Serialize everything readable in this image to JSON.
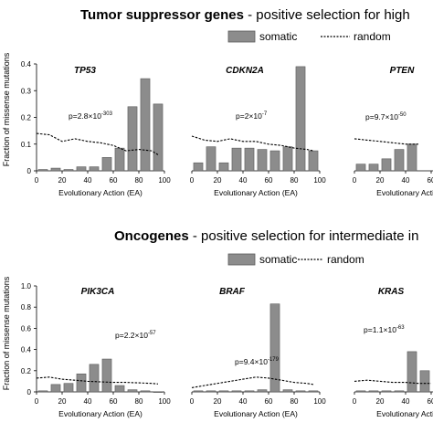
{
  "legend": {
    "somatic_label": "somatic",
    "random_label": "random",
    "somatic_color": "#8c8c8c",
    "bar_edge_color": "#5a5a5a",
    "random_color": "#000000"
  },
  "sections": [
    {
      "heading_bold": "Tumor suppressor genes",
      "heading_rest": " - positive selection for high",
      "ylabel": "Fraction of missense mutations",
      "yticks": [
        "0",
        "0.1",
        "0.2",
        "0.3",
        "0.4"
      ],
      "ylim": [
        0,
        0.4
      ]
    },
    {
      "heading_bold": "Oncogenes",
      "heading_rest": " - positive selection for intermediate in",
      "ylabel": "Fraction of missense mutations",
      "yticks": [
        "0",
        "0.2",
        "0.4",
        "0.6",
        "0.8",
        "1.0"
      ],
      "ylim": [
        0,
        1.0
      ]
    }
  ],
  "xlabel": "Evolutionary Action (EA)",
  "xticks": [
    "0",
    "20",
    "40",
    "60",
    "80",
    "100"
  ],
  "chart_data": [
    {
      "type": "bar",
      "title": "TP53",
      "pvalue_base": "p=2.8×10",
      "pvalue_exp": "-303",
      "x": [
        5,
        15,
        25,
        35,
        45,
        55,
        65,
        75,
        85,
        95
      ],
      "series": [
        {
          "name": "somatic",
          "values": [
            0.005,
            0.01,
            0.005,
            0.015,
            0.015,
            0.05,
            0.085,
            0.24,
            0.345,
            0.25
          ]
        },
        {
          "name": "random",
          "x": [
            0,
            10,
            20,
            30,
            40,
            50,
            60,
            70,
            80,
            90,
            95
          ],
          "values": [
            0.14,
            0.135,
            0.11,
            0.12,
            0.11,
            0.105,
            0.095,
            0.075,
            0.08,
            0.075,
            0.06
          ]
        }
      ],
      "xlabel": "Evolutionary Action (EA)",
      "ylabel": "Fraction of missense mutations",
      "xlim": [
        0,
        100
      ],
      "ylim": [
        0,
        0.4
      ]
    },
    {
      "type": "bar",
      "title": "CDKN2A",
      "pvalue_base": "p=2×10",
      "pvalue_exp": "-7",
      "x": [
        5,
        15,
        25,
        35,
        45,
        55,
        65,
        75,
        85,
        95
      ],
      "series": [
        {
          "name": "somatic",
          "values": [
            0.03,
            0.09,
            0.03,
            0.085,
            0.085,
            0.08,
            0.075,
            0.09,
            0.39,
            0.075
          ]
        },
        {
          "name": "random",
          "x": [
            0,
            10,
            20,
            30,
            40,
            50,
            60,
            70,
            80,
            90,
            95
          ],
          "values": [
            0.13,
            0.115,
            0.11,
            0.12,
            0.11,
            0.11,
            0.1,
            0.095,
            0.085,
            0.08,
            0.075
          ]
        }
      ],
      "xlabel": "Evolutionary Action (EA)",
      "xlim": [
        0,
        100
      ],
      "ylim": [
        0,
        0.4
      ]
    },
    {
      "type": "bar",
      "title": "PTEN",
      "pvalue_base": "p=9.7×10",
      "pvalue_exp": "-50",
      "x": [
        5,
        15,
        25,
        35,
        45
      ],
      "series": [
        {
          "name": "somatic",
          "values": [
            0.025,
            0.025,
            0.045,
            0.08,
            0.1
          ]
        },
        {
          "name": "random",
          "x": [
            0,
            10,
            20,
            30,
            40,
            50
          ],
          "values": [
            0.12,
            0.115,
            0.11,
            0.105,
            0.1,
            0.1
          ]
        }
      ],
      "xlabel": "Evolutionary Action (EA)",
      "xlim": [
        0,
        100
      ],
      "ylim": [
        0,
        0.4
      ]
    },
    {
      "type": "bar",
      "title": "PIK3CA",
      "pvalue_base": "p=2.2×10",
      "pvalue_exp": "-57",
      "x": [
        5,
        15,
        25,
        35,
        45,
        55,
        65,
        75,
        85,
        95
      ],
      "series": [
        {
          "name": "somatic",
          "values": [
            0.01,
            0.07,
            0.08,
            0.17,
            0.26,
            0.31,
            0.06,
            0.02,
            0.01,
            0.0
          ]
        },
        {
          "name": "random",
          "x": [
            0,
            10,
            20,
            30,
            40,
            50,
            60,
            70,
            80,
            90,
            95
          ],
          "values": [
            0.13,
            0.14,
            0.12,
            0.11,
            0.1,
            0.095,
            0.09,
            0.09,
            0.085,
            0.08,
            0.075
          ]
        }
      ],
      "xlabel": "Evolutionary Action (EA)",
      "ylabel": "Fraction of missense mutations",
      "xlim": [
        0,
        100
      ],
      "ylim": [
        0,
        1.0
      ]
    },
    {
      "type": "bar",
      "title": "BRAF",
      "pvalue_base": "p=9.4×10",
      "pvalue_exp": "-179",
      "x": [
        5,
        15,
        25,
        35,
        45,
        55,
        65,
        75,
        85,
        95
      ],
      "series": [
        {
          "name": "somatic",
          "values": [
            0.01,
            0.01,
            0.01,
            0.01,
            0.01,
            0.02,
            0.83,
            0.02,
            0.01,
            0.01
          ]
        },
        {
          "name": "random",
          "x": [
            0,
            10,
            20,
            30,
            40,
            50,
            60,
            70,
            80,
            90,
            95
          ],
          "values": [
            0.04,
            0.06,
            0.08,
            0.1,
            0.12,
            0.14,
            0.13,
            0.11,
            0.09,
            0.08,
            0.07
          ]
        }
      ],
      "xlabel": "Evolutionary Action (EA)",
      "xlim": [
        0,
        100
      ],
      "ylim": [
        0,
        1.0
      ]
    },
    {
      "type": "bar",
      "title": "KRAS",
      "pvalue_base": "p=1.1×10",
      "pvalue_exp": "-63",
      "x": [
        5,
        15,
        25,
        35,
        45,
        55
      ],
      "series": [
        {
          "name": "somatic",
          "values": [
            0.01,
            0.01,
            0.01,
            0.01,
            0.38,
            0.2
          ]
        },
        {
          "name": "random",
          "x": [
            0,
            10,
            20,
            30,
            40,
            50,
            60
          ],
          "values": [
            0.1,
            0.11,
            0.1,
            0.09,
            0.09,
            0.08,
            0.08
          ]
        }
      ],
      "xlabel": "Evolutionary Action (EA)",
      "xlim": [
        0,
        100
      ],
      "ylim": [
        0,
        1.0
      ]
    }
  ]
}
